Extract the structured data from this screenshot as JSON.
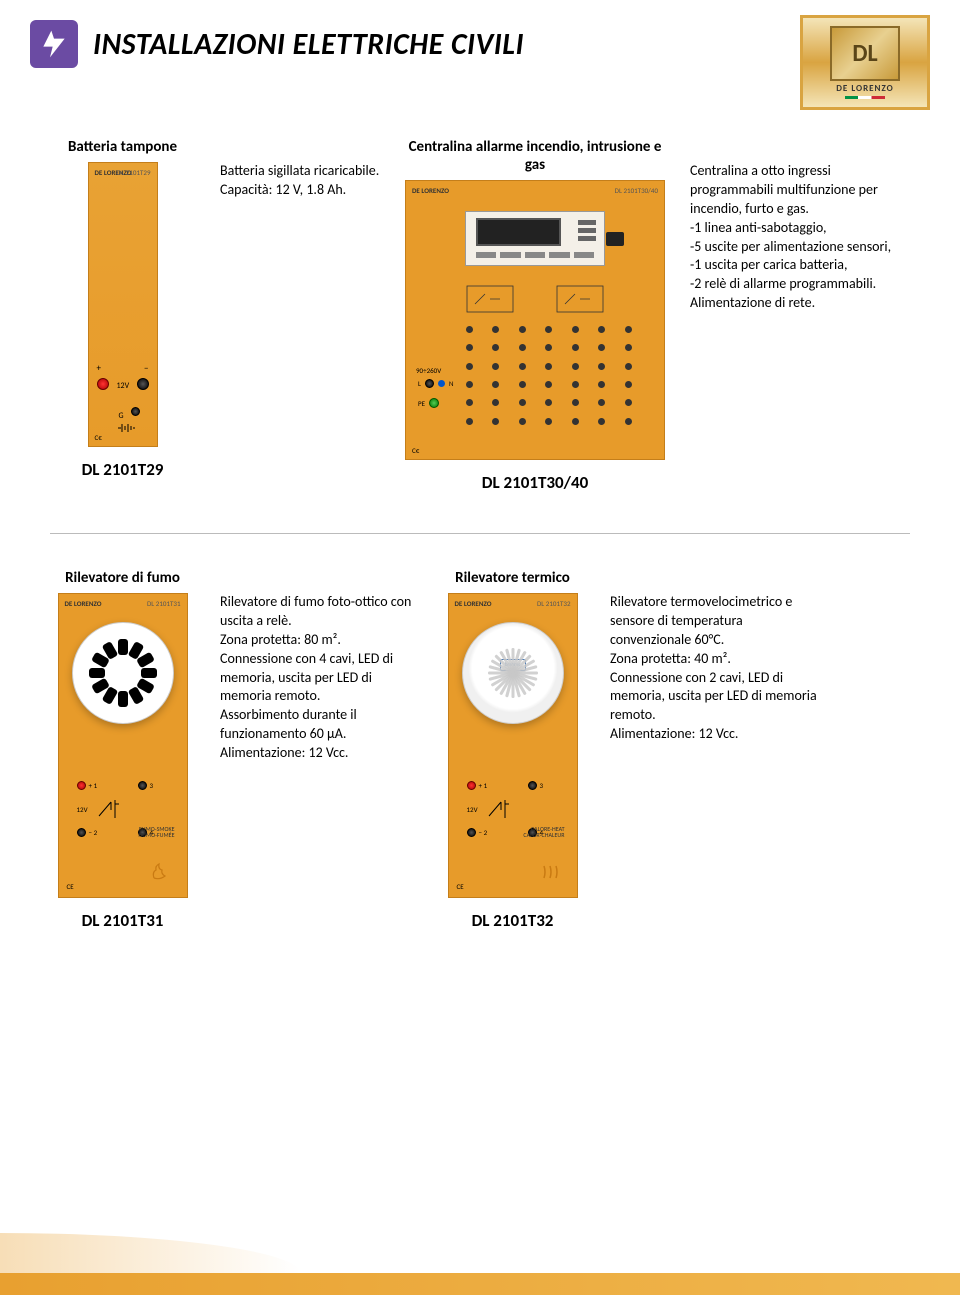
{
  "header": {
    "title": "INSTALLAZIONI ELETTRICHE CIVILI",
    "logo_text": "DE LORENZO",
    "logo_monogram": "DL"
  },
  "colors": {
    "panel_bg": "#e79b2a",
    "accent_purple": "#6b4ba3",
    "logo_gold": "#d9a441",
    "connector_red": "#cc0000",
    "connector_black": "#000000",
    "connector_green": "#0a7a0a",
    "connector_blue": "#0055cc",
    "text": "#000000",
    "divider": "#bbbbbb"
  },
  "section1": {
    "products": [
      {
        "title": "Batteria tampone",
        "desc": "Batteria sigillata ricaricabile.\nCapacità: 12 V, 1.8 Ah.",
        "model": "DL 2101T29",
        "panel_code": "DL 2101T29",
        "brand": "DE LORENZO",
        "labels": {
          "v12": "12V",
          "g": "G",
          "plus": "+",
          "minus": "−"
        }
      },
      {
        "title": "Centralina allarme incendio, intrusione e gas",
        "desc": "Centralina a otto ingressi programmabili multifunzione per incendio, furto e gas.\n-1 linea anti-sabotaggio,\n-5 uscite per alimentazione sensori,\n-1 uscita per carica batteria,\n-2 relè di allarme programmabili.\nAlimentazione di rete.",
        "model": "DL 2101T30/40",
        "panel_code": "DL 2101T30/40",
        "brand": "DE LORENZO",
        "labels": {
          "mains": "90÷260V",
          "L": "L",
          "N": "N",
          "PE": "PE",
          "ce": "CE"
        }
      }
    ]
  },
  "section2": {
    "products": [
      {
        "title": "Rilevatore di fumo",
        "desc": "Rilevatore di fumo foto-ottico con uscita a relè.\nZona protetta: 80 m².\nConnessione con 4 cavi, LED di memoria, uscita per LED di memoria remoto.\nAssorbimento durante il funzionamento 60 µA.\nAlimentazione: 12 Vcc.",
        "model": "DL 2101T31",
        "panel_code": "DL 2101T31",
        "brand": "DE LORENZO",
        "conn_labels": {
          "c1": "+ 1",
          "c2": "3",
          "c3": "12V",
          "c4": "− 2",
          "c5": "4"
        },
        "bottom_text": "FUMO-SMOKE\nHUMO-FUMÉE",
        "ce": "CE"
      },
      {
        "title": "Rilevatore termico",
        "desc": "Rilevatore termovelocimetrico e sensore di temperatura convenzionale 60°C.\nZona protetta: 40 m².\nConnessione con 2 cavi, LED di memoria, uscita per LED di memoria remoto.\nAlimentazione: 12 Vcc.",
        "model": "DL 2101T32",
        "panel_code": "DL 2101T32",
        "brand": "DE LORENZO",
        "conn_labels": {
          "c1": "+ 1",
          "c2": "3",
          "c3": "12V",
          "c4": "− 2",
          "c5": "4"
        },
        "bottom_text": "CALORE-HEAT\nCALOR-CHALEUR",
        "ce": "CE"
      }
    ]
  }
}
